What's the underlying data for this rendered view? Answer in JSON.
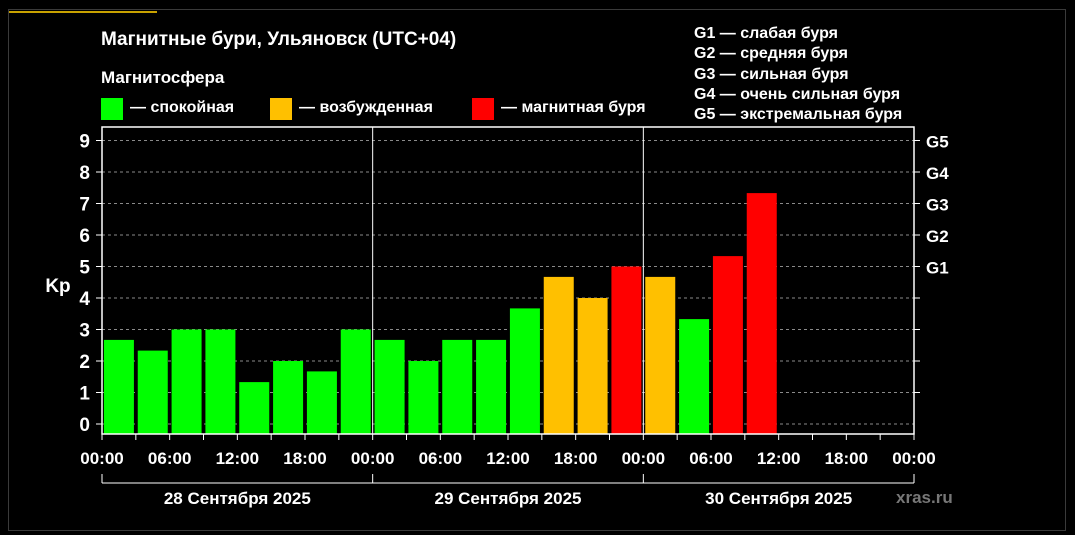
{
  "header": {
    "title": "Магнитные бури, Ульяновск (UTC+04)",
    "subtitle": "Магнитосфера"
  },
  "legend": [
    {
      "label": "— спокойная",
      "color": "#00ff00"
    },
    {
      "label": "— возбужденная",
      "color": "#ffc000"
    },
    {
      "label": "— магнитная буря",
      "color": "#ff0000"
    }
  ],
  "g_scale": [
    "G1 — слабая буря",
    "G2 — средняя буря",
    "G3 — сильная буря",
    "G4 — очень сильная буря",
    "G5 — экстремальная буря"
  ],
  "watermark": "xras.ru",
  "chart_data": {
    "type": "bar",
    "ylabel": "Kp",
    "ylim": [
      0,
      9
    ],
    "yticks": [
      "0",
      "1",
      "2",
      "3",
      "4",
      "5",
      "6",
      "7",
      "8",
      "9"
    ],
    "right_ticks": [
      {
        "value": 5,
        "label": "G1"
      },
      {
        "value": 6,
        "label": "G2"
      },
      {
        "value": 7,
        "label": "G3"
      },
      {
        "value": 8,
        "label": "G4"
      },
      {
        "value": 9,
        "label": "G5"
      }
    ],
    "x_tick_labels": [
      "00:00",
      "06:00",
      "12:00",
      "18:00",
      "00:00",
      "06:00",
      "12:00",
      "18:00",
      "00:00",
      "06:00",
      "12:00",
      "18:00",
      "00:00"
    ],
    "dates": [
      "28 Сентября 2025",
      "29 Сентября 2025",
      "30 Сентября 2025"
    ],
    "grid": true,
    "bars": [
      {
        "value": 2.67,
        "status": "quiet"
      },
      {
        "value": 2.33,
        "status": "quiet"
      },
      {
        "value": 3.0,
        "status": "quiet"
      },
      {
        "value": 3.0,
        "status": "quiet"
      },
      {
        "value": 1.33,
        "status": "quiet"
      },
      {
        "value": 2.0,
        "status": "quiet"
      },
      {
        "value": 1.67,
        "status": "quiet"
      },
      {
        "value": 3.0,
        "status": "quiet"
      },
      {
        "value": 2.67,
        "status": "quiet"
      },
      {
        "value": 2.0,
        "status": "quiet"
      },
      {
        "value": 2.67,
        "status": "quiet"
      },
      {
        "value": 2.67,
        "status": "quiet"
      },
      {
        "value": 3.67,
        "status": "quiet"
      },
      {
        "value": 4.67,
        "status": "active"
      },
      {
        "value": 4.0,
        "status": "active"
      },
      {
        "value": 5.0,
        "status": "storm"
      },
      {
        "value": 4.67,
        "status": "active"
      },
      {
        "value": 3.33,
        "status": "quiet"
      },
      {
        "value": 5.33,
        "status": "storm"
      },
      {
        "value": 7.33,
        "status": "storm"
      }
    ],
    "colors": {
      "quiet": "#00ff00",
      "active": "#ffc000",
      "storm": "#ff0000"
    }
  }
}
